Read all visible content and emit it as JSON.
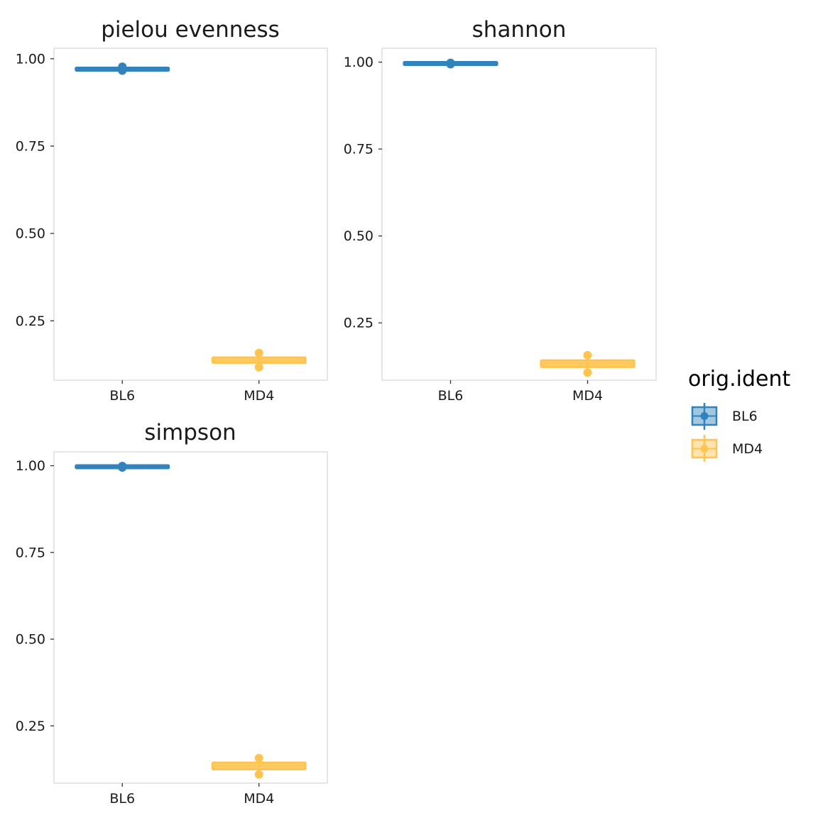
{
  "chart_data": [
    {
      "type": "box",
      "title": "pielou evenness",
      "categories": [
        "BL6",
        "MD4"
      ],
      "ylim": [
        0.08,
        1.03
      ],
      "yticks": [
        0.25,
        0.5,
        0.75,
        1.0
      ],
      "ytick_labels": [
        "0.25",
        "0.50",
        "0.75",
        "1.00"
      ],
      "series": [
        {
          "category": "BL6",
          "q1": 0.968,
          "median": 0.97,
          "q3": 0.972,
          "whisker_low": 0.966,
          "whisker_high": 0.976,
          "points": [
            0.977,
            0.966
          ]
        },
        {
          "category": "MD4",
          "q1": 0.13,
          "median": 0.137,
          "q3": 0.145,
          "whisker_low": 0.125,
          "whisker_high": 0.15,
          "points": [
            0.158,
            0.117
          ]
        }
      ]
    },
    {
      "type": "box",
      "title": "shannon",
      "categories": [
        "BL6",
        "MD4"
      ],
      "ylim": [
        0.085,
        1.04
      ],
      "yticks": [
        0.25,
        0.5,
        0.75,
        1.0
      ],
      "ytick_labels": [
        "0.25",
        "0.50",
        "0.75",
        "1.00"
      ],
      "series": [
        {
          "category": "BL6",
          "q1": 0.994,
          "median": 0.996,
          "q3": 0.998,
          "whisker_low": 0.993,
          "whisker_high": 0.999,
          "points": [
            0.998,
            0.994
          ]
        },
        {
          "category": "MD4",
          "q1": 0.123,
          "median": 0.133,
          "q3": 0.142,
          "whisker_low": 0.115,
          "whisker_high": 0.15,
          "points": [
            0.157,
            0.107
          ]
        }
      ]
    },
    {
      "type": "box",
      "title": "simpson",
      "categories": [
        "BL6",
        "MD4"
      ],
      "ylim": [
        0.085,
        1.04
      ],
      "yticks": [
        0.25,
        0.5,
        0.75,
        1.0
      ],
      "ytick_labels": [
        "0.25",
        "0.50",
        "0.75",
        "1.00"
      ],
      "series": [
        {
          "category": "BL6",
          "q1": 0.996,
          "median": 0.997,
          "q3": 0.998,
          "whisker_low": 0.995,
          "whisker_high": 0.999,
          "points": [
            0.999,
            0.995
          ]
        },
        {
          "category": "MD4",
          "q1": 0.125,
          "median": 0.135,
          "q3": 0.144,
          "whisker_low": 0.117,
          "whisker_high": 0.15,
          "points": [
            0.157,
            0.11
          ]
        }
      ]
    }
  ],
  "legend": {
    "title": "orig.ident",
    "items": [
      {
        "label": "BL6",
        "color": "#3182bd"
      },
      {
        "label": "MD4",
        "color": "#fec44f"
      }
    ]
  },
  "colors": {
    "BL6": "#3182bd",
    "MD4": "#fec44f"
  }
}
